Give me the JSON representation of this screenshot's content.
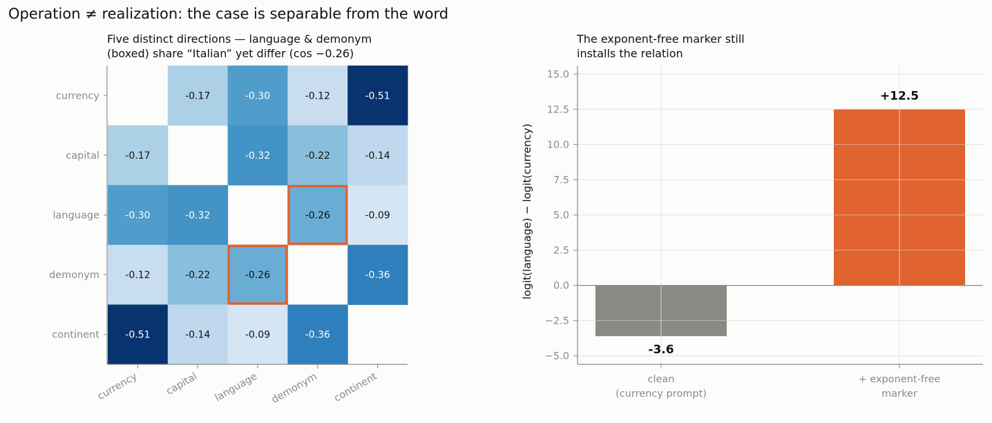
{
  "figure": {
    "title": "Operation ≠ realization: the case is separable from the word"
  },
  "chart_data": [
    {
      "type": "heatmap",
      "title_line1": "Five distinct directions — language & demonym",
      "title_line2": "(boxed) share “Italian” yet differ (cos −0.26)",
      "rows": [
        "currency",
        "capital",
        "language",
        "demonym",
        "continent"
      ],
      "cols": [
        "currency",
        "capital",
        "language",
        "demonym",
        "continent"
      ],
      "values": [
        [
          null,
          -0.17,
          -0.3,
          -0.12,
          -0.51
        ],
        [
          -0.17,
          null,
          -0.32,
          -0.22,
          -0.14
        ],
        [
          -0.3,
          -0.32,
          null,
          -0.26,
          -0.09
        ],
        [
          -0.12,
          -0.22,
          -0.26,
          null,
          -0.36
        ],
        [
          -0.51,
          -0.14,
          -0.09,
          -0.36,
          null
        ]
      ],
      "cell_labels": [
        [
          "",
          "-0.17",
          "-0.30",
          "-0.12",
          "-0.51"
        ],
        [
          "-0.17",
          "",
          "-0.32",
          "-0.22",
          "-0.14"
        ],
        [
          "-0.30",
          "-0.32",
          "",
          "-0.26",
          "-0.09"
        ],
        [
          "-0.12",
          "-0.22",
          "-0.26",
          "",
          "-0.36"
        ],
        [
          "-0.51",
          "-0.14",
          "-0.09",
          "-0.36",
          ""
        ]
      ],
      "highlighted_cells": [
        [
          2,
          3
        ],
        [
          3,
          2
        ]
      ],
      "colormap": "Blues",
      "highlight_color": "#e0622f"
    },
    {
      "type": "bar",
      "title_line1": "The exponent-free marker still",
      "title_line2": "installs the relation",
      "categories": [
        "clean\n(currency prompt)",
        "+ exponent-free\nmarker"
      ],
      "values": [
        -3.6,
        12.5
      ],
      "value_labels": [
        "-3.6",
        "+12.5"
      ],
      "colors": [
        "#8a8984",
        "#e0622f"
      ],
      "ylabel": "logit(language) − logit(currency)",
      "ylim": [
        -5.6,
        15.6
      ],
      "yticks": [
        "−5.0",
        "−2.5",
        "0.0",
        "2.5",
        "5.0",
        "7.5",
        "10.0",
        "12.5",
        "15.0"
      ],
      "grid": true
    }
  ]
}
